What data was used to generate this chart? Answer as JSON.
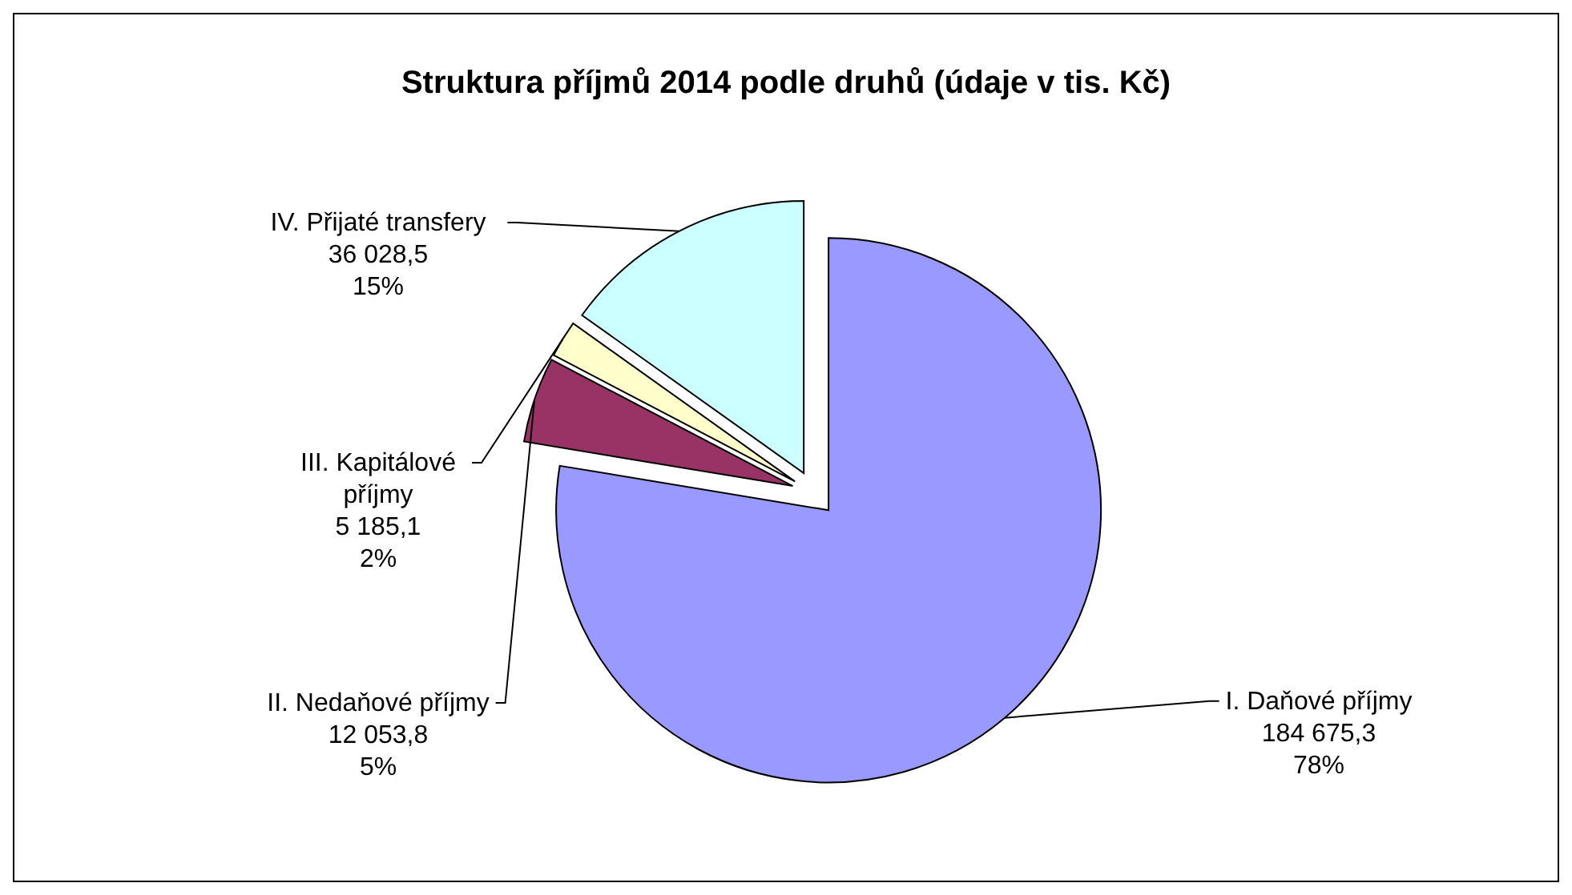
{
  "chart_data": {
    "type": "pie",
    "title": "Struktura příjmů 2014 podle druhů (údaje v tis. Kč)",
    "categories": [
      "I. Daňové příjmy",
      "II. Nedaňové příjmy",
      "III. Kapitálové příjmy",
      "IV. Přijaté transfery"
    ],
    "values": [
      184675.3,
      12053.8,
      5185.1,
      36028.5
    ],
    "colors": [
      "#9999ff",
      "#993366",
      "#ffffcc",
      "#ccffff"
    ],
    "value_labels": [
      "184 675,3\n78%",
      "12 053,8\n5%",
      "5 185,1\n2%",
      "36 028,5\n15%"
    ]
  }
}
